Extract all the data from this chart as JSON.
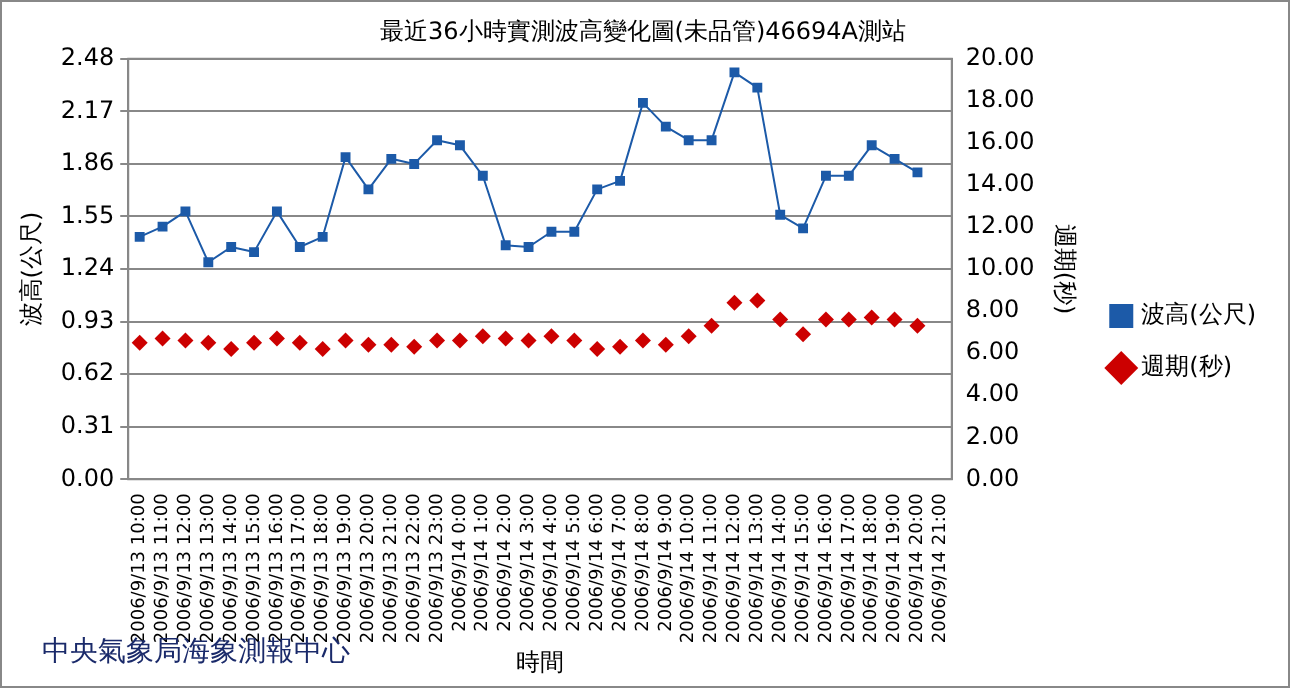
{
  "chart_data": {
    "type": "line",
    "title": "最近36小時實測波高變化圖(未品管)46694A測站",
    "xlabel": "時間",
    "ylabel": "波高(公尺)",
    "y2label": "週期(秒)",
    "categories": [
      "2006/9/13 10:00",
      "2006/9/13 11:00",
      "2006/9/13 12:00",
      "2006/9/13 13:00",
      "2006/9/13 14:00",
      "2006/9/13 15:00",
      "2006/9/13 16:00",
      "2006/9/13 17:00",
      "2006/9/13 18:00",
      "2006/9/13 19:00",
      "2006/9/13 20:00",
      "2006/9/13 21:00",
      "2006/9/13 22:00",
      "2006/9/13 23:00",
      "2006/9/14 0:00",
      "2006/9/14 1:00",
      "2006/9/14 2:00",
      "2006/9/14 3:00",
      "2006/9/14 4:00",
      "2006/9/14 5:00",
      "2006/9/14 6:00",
      "2006/9/14 7:00",
      "2006/9/14 8:00",
      "2006/9/14 9:00",
      "2006/9/14 10:00",
      "2006/9/14 11:00",
      "2006/9/14 12:00",
      "2006/9/14 13:00",
      "2006/9/14 14:00",
      "2006/9/14 15:00",
      "2006/9/14 16:00",
      "2006/9/14 17:00",
      "2006/9/14 18:00",
      "2006/9/14 19:00",
      "2006/9/14 20:00",
      "2006/9/14 21:00"
    ],
    "series": [
      {
        "name": "波高(公尺)",
        "color": "#1c5aa8",
        "marker": "square",
        "line_style": "solid",
        "values": [
          1.43,
          1.49,
          1.58,
          1.28,
          1.37,
          1.34,
          1.58,
          1.37,
          1.43,
          1.9,
          1.71,
          1.89,
          1.86,
          2.0,
          1.97,
          1.79,
          1.38,
          1.37,
          1.46,
          1.46,
          1.71,
          1.76,
          2.22,
          2.08,
          2.0,
          2.0,
          2.4,
          2.31,
          1.56,
          1.48,
          1.79,
          1.79,
          1.97,
          1.89,
          1.81,
          null
        ]
      },
      {
        "name": "週期(秒)",
        "type": "scatter",
        "axis": "y2",
        "color": "#cc0000",
        "marker": "diamond",
        "values": [
          6.5,
          6.7,
          6.6,
          6.5,
          6.2,
          6.5,
          6.7,
          6.5,
          6.2,
          6.6,
          6.4,
          6.4,
          6.3,
          6.6,
          6.6,
          6.8,
          6.7,
          6.6,
          6.8,
          6.6,
          6.2,
          6.3,
          6.6,
          6.4,
          6.8,
          7.3,
          8.4,
          8.5,
          7.6,
          6.9,
          7.6,
          7.6,
          7.7,
          7.6,
          7.3,
          null
        ]
      }
    ],
    "ylim": [
      0,
      2.48
    ],
    "yticks": [
      {
        "value": 0,
        "label": "0.00"
      },
      0.31,
      0.62,
      0.93,
      1.24,
      1.55,
      1.86,
      2.17,
      2.48
    ],
    "y2lim": [
      0,
      20
    ],
    "y2ticks": [
      {
        "value": 0,
        "label": "0.00"
      },
      {
        "value": 2,
        "label": "2.00"
      },
      {
        "value": 4,
        "label": "4.00"
      },
      {
        "value": 6,
        "label": "6.00"
      },
      {
        "value": 8,
        "label": "8.00"
      },
      {
        "value": 10,
        "label": "10.00"
      },
      {
        "value": 12,
        "label": "12.00"
      },
      {
        "value": 14,
        "label": "14.00"
      },
      {
        "value": 16,
        "label": "16.00"
      },
      {
        "value": 18,
        "label": "18.00"
      },
      {
        "value": 20,
        "label": "20.00"
      }
    ],
    "grid": "y",
    "legend": "right",
    "annotations": [
      "中央氣象局海象測報中心"
    ]
  }
}
